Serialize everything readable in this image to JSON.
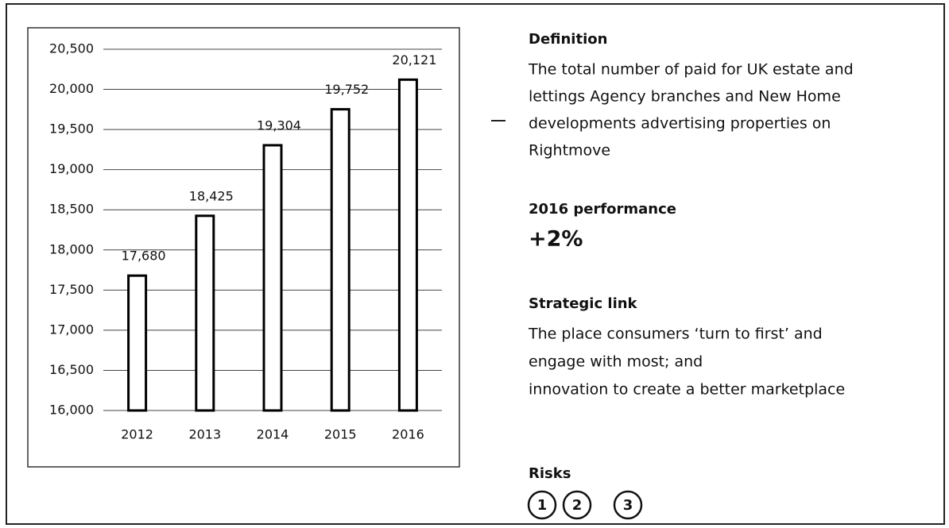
{
  "chart_data": {
    "type": "bar",
    "categories": [
      "2012",
      "2013",
      "2014",
      "2015",
      "2016"
    ],
    "values": [
      17680,
      18425,
      19304,
      19752,
      20121
    ],
    "value_labels": [
      "17,680",
      "18,425",
      "19,304",
      "19,752",
      "20,121"
    ],
    "color": "#ffffff",
    "edge_color": "#000000",
    "ylim": [
      16000,
      20500
    ],
    "yticks": [
      {
        "value": 16000,
        "label": "16,000"
      },
      {
        "value": 16500,
        "label": "16,500"
      },
      {
        "value": 17000,
        "label": "17,000"
      },
      {
        "value": 17500,
        "label": "17,500"
      },
      {
        "value": 18000,
        "label": "18,000"
      },
      {
        "value": 18500,
        "label": "18,500"
      },
      {
        "value": 19000,
        "label": "19,000"
      },
      {
        "value": 19500,
        "label": "19,500"
      },
      {
        "value": 20000,
        "label": "20,000"
      },
      {
        "value": 20500,
        "label": "20,500"
      }
    ],
    "grid": true
  },
  "definition": {
    "heading": "Definition",
    "lines": [
      "The total number of paid for UK estate and",
      "lettings Agency branches and New Home",
      "developments advertising properties on",
      "Rightmove"
    ]
  },
  "performance": {
    "heading": "2016 performance",
    "value": "+2%"
  },
  "strategic_link": {
    "heading": "Strategic link",
    "lines": [
      "The place consumers ‘turn to first’ and",
      "engage with most; and",
      "innovation to create a better marketplace"
    ]
  },
  "risks": {
    "heading": "Risks",
    "items": [
      "1",
      "2",
      "3"
    ]
  }
}
